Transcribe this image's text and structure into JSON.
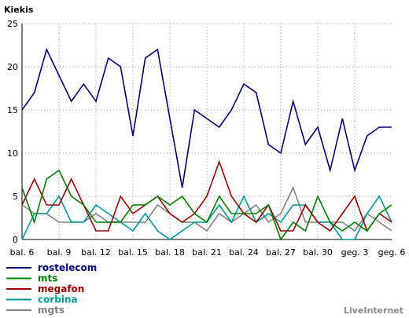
{
  "chart_data": {
    "type": "line",
    "title": "Kiekis",
    "xlabel": "",
    "ylabel": "",
    "ylim": [
      0,
      25
    ],
    "yticks": [
      0,
      5,
      10,
      15,
      20,
      25
    ],
    "grid": true,
    "legend_position": "bottom-left",
    "x_tick_labels": [
      "bal. 6",
      "bal. 9",
      "bal. 12",
      "bal. 15",
      "bal. 18",
      "bal. 21",
      "bal. 24",
      "bal. 27",
      "bal. 30",
      "geg. 3",
      "geg. 6"
    ],
    "categories": [
      "bal. 6",
      "bal. 7",
      "bal. 8",
      "bal. 9",
      "bal. 10",
      "bal. 11",
      "bal. 12",
      "bal. 13",
      "bal. 14",
      "bal. 15",
      "bal. 16",
      "bal. 17",
      "bal. 18",
      "bal. 19",
      "bal. 20",
      "bal. 21",
      "bal. 22",
      "bal. 23",
      "bal. 24",
      "bal. 25",
      "bal. 26",
      "bal. 27",
      "bal. 28",
      "bal. 29",
      "bal. 30",
      "geg. 1",
      "geg. 2",
      "geg. 3",
      "geg. 4",
      "geg. 5",
      "geg. 6"
    ],
    "series": [
      {
        "name": "rostelecom",
        "color": "#000080",
        "values": [
          15,
          17,
          22,
          19,
          16,
          18,
          16,
          21,
          20,
          12,
          21,
          22,
          14,
          6,
          15,
          14,
          13,
          15,
          18,
          17,
          11,
          10,
          16,
          11,
          13,
          8,
          14,
          8,
          12,
          13,
          13
        ]
      },
      {
        "name": "mts",
        "color": "#008000",
        "values": [
          6,
          2,
          7,
          8,
          5,
          4,
          2,
          2,
          2,
          4,
          4,
          5,
          4,
          5,
          3,
          2,
          5,
          3,
          3,
          3,
          4,
          0,
          2,
          1,
          5,
          2,
          1,
          2,
          1,
          3,
          4
        ]
      },
      {
        "name": "megafon",
        "color": "#a00000",
        "values": [
          4,
          7,
          4,
          4,
          7,
          4,
          1,
          1,
          5,
          3,
          4,
          5,
          3,
          2,
          3,
          5,
          9,
          5,
          3,
          2,
          4,
          1,
          1,
          4,
          2,
          1,
          3,
          5,
          1,
          3,
          2
        ]
      },
      {
        "name": "corbina",
        "color": "#009999",
        "values": [
          0,
          3,
          3,
          5,
          2,
          2,
          4,
          3,
          2,
          1,
          3,
          1,
          0,
          1,
          2,
          2,
          4,
          2,
          5,
          2,
          3,
          2,
          4,
          4,
          2,
          2,
          0,
          0,
          3,
          5,
          2
        ]
      },
      {
        "name": "mgts",
        "color": "#808080",
        "values": [
          4,
          3,
          3,
          2,
          2,
          2,
          3,
          2,
          2,
          2,
          2,
          4,
          3,
          2,
          2,
          1,
          3,
          2,
          3,
          4,
          2,
          3,
          6,
          2,
          2,
          2,
          2,
          1,
          3,
          2,
          1
        ]
      }
    ]
  },
  "branding": {
    "text": "LiveInternet"
  }
}
